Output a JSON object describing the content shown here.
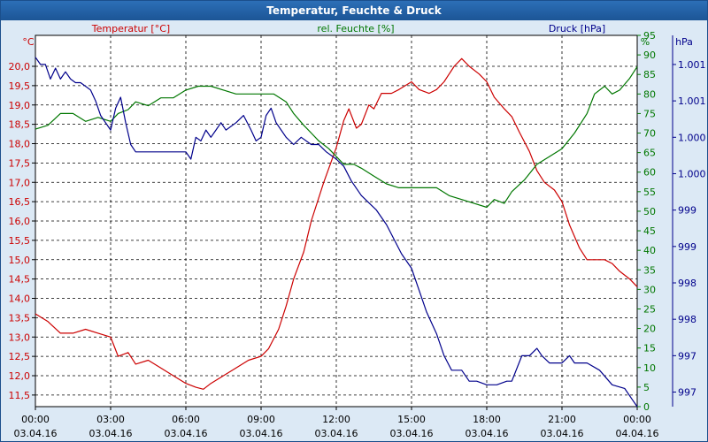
{
  "window": {
    "title": "Temperatur, Feuchte & Druck"
  },
  "colors": {
    "temperature": "#cc0000",
    "humidity": "#007700",
    "pressure": "#00008b",
    "axis_text": "#000000"
  },
  "chart_data": {
    "type": "line",
    "title": "Temperatur, Feuchte & Druck",
    "x_ticks": [
      {
        "time": "00:00",
        "date": "03.04.16"
      },
      {
        "time": "03:00",
        "date": "03.04.16"
      },
      {
        "time": "06:00",
        "date": "03.04.16"
      },
      {
        "time": "09:00",
        "date": "03.04.16"
      },
      {
        "time": "12:00",
        "date": "03.04.16"
      },
      {
        "time": "15:00",
        "date": "03.04.16"
      },
      {
        "time": "18:00",
        "date": "03.04.16"
      },
      {
        "time": "21:00",
        "date": "03.04.16"
      },
      {
        "time": "00:00",
        "date": "04.04.16"
      }
    ],
    "x_range_hours": [
      0,
      24
    ],
    "axes": {
      "temperature": {
        "label": "Temperatur [°C]",
        "unit": "°C",
        "range": [
          11.2,
          20.8
        ],
        "ticks": [
          "20,0",
          "19,5",
          "19,0",
          "18,5",
          "18,0",
          "17,5",
          "17,0",
          "16,5",
          "16,0",
          "15,5",
          "15,0",
          "14,5",
          "14,0",
          "13,5",
          "13,0",
          "12,5",
          "12,0",
          "11,5"
        ],
        "tick_values": [
          20.0,
          19.5,
          19.0,
          18.5,
          18.0,
          17.5,
          17.0,
          16.5,
          16.0,
          15.5,
          15.0,
          14.5,
          14.0,
          13.5,
          13.0,
          12.5,
          12.0,
          11.5
        ]
      },
      "humidity": {
        "label": "rel. Feuchte [%]",
        "unit": "%",
        "range": [
          0,
          95
        ],
        "ticks": [
          "95",
          "90",
          "85",
          "80",
          "75",
          "70",
          "65",
          "60",
          "55",
          "50",
          "45",
          "40",
          "35",
          "30",
          "25",
          "20",
          "15",
          "10",
          "5",
          "0"
        ],
        "tick_values": [
          95,
          90,
          85,
          80,
          75,
          70,
          65,
          60,
          55,
          50,
          45,
          40,
          35,
          30,
          25,
          20,
          15,
          10,
          5,
          0
        ]
      },
      "pressure": {
        "label": "Druck [hPa]",
        "unit": "hPa",
        "range": [
          996.5,
          1001.6
        ],
        "ticks": [
          "1.001",
          "1.001",
          "1.000",
          "1.000",
          "999",
          "999",
          "998",
          "998",
          "997",
          "997"
        ],
        "tick_values": [
          1001.2,
          1000.7,
          1000.2,
          999.7,
          999.2,
          998.7,
          998.2,
          997.7,
          997.2,
          996.7
        ]
      }
    },
    "series": [
      {
        "name": "Temperatur",
        "axis": "temperature",
        "points": [
          [
            0,
            13.6
          ],
          [
            0.5,
            13.4
          ],
          [
            1,
            13.1
          ],
          [
            1.5,
            13.1
          ],
          [
            2,
            13.2
          ],
          [
            2.5,
            13.1
          ],
          [
            3,
            13.0
          ],
          [
            3.3,
            12.5
          ],
          [
            3.7,
            12.6
          ],
          [
            4,
            12.3
          ],
          [
            4.5,
            12.4
          ],
          [
            5,
            12.2
          ],
          [
            5.5,
            12.0
          ],
          [
            6,
            11.8
          ],
          [
            6.4,
            11.7
          ],
          [
            6.7,
            11.65
          ],
          [
            7,
            11.8
          ],
          [
            7.5,
            12.0
          ],
          [
            8,
            12.2
          ],
          [
            8.5,
            12.4
          ],
          [
            9,
            12.5
          ],
          [
            9.3,
            12.7
          ],
          [
            9.7,
            13.2
          ],
          [
            10,
            13.8
          ],
          [
            10.3,
            14.5
          ],
          [
            10.7,
            15.2
          ],
          [
            11,
            16.0
          ],
          [
            11.5,
            17.0
          ],
          [
            12,
            17.9
          ],
          [
            12.3,
            18.6
          ],
          [
            12.5,
            18.9
          ],
          [
            12.8,
            18.4
          ],
          [
            13,
            18.5
          ],
          [
            13.3,
            19.0
          ],
          [
            13.5,
            18.9
          ],
          [
            13.8,
            19.3
          ],
          [
            14.2,
            19.3
          ],
          [
            14.5,
            19.4
          ],
          [
            15,
            19.6
          ],
          [
            15.3,
            19.4
          ],
          [
            15.7,
            19.3
          ],
          [
            16,
            19.4
          ],
          [
            16.3,
            19.6
          ],
          [
            16.7,
            20.0
          ],
          [
            17,
            20.2
          ],
          [
            17.3,
            20.0
          ],
          [
            17.7,
            19.8
          ],
          [
            18,
            19.6
          ],
          [
            18.3,
            19.2
          ],
          [
            18.7,
            18.9
          ],
          [
            19,
            18.7
          ],
          [
            19.3,
            18.3
          ],
          [
            19.7,
            17.8
          ],
          [
            20,
            17.3
          ],
          [
            20.3,
            17.0
          ],
          [
            20.7,
            16.8
          ],
          [
            21,
            16.5
          ],
          [
            21.3,
            15.9
          ],
          [
            21.7,
            15.3
          ],
          [
            22,
            15.0
          ],
          [
            22.3,
            15.0
          ],
          [
            22.7,
            15.0
          ],
          [
            23,
            14.9
          ],
          [
            23.3,
            14.7
          ],
          [
            23.7,
            14.5
          ],
          [
            24,
            14.3
          ]
        ]
      },
      {
        "name": "rel. Feuchte",
        "axis": "humidity",
        "points": [
          [
            0,
            71
          ],
          [
            0.5,
            72
          ],
          [
            1,
            75
          ],
          [
            1.5,
            75
          ],
          [
            2,
            73
          ],
          [
            2.5,
            74
          ],
          [
            3,
            73
          ],
          [
            3.3,
            75
          ],
          [
            3.7,
            76
          ],
          [
            4,
            78
          ],
          [
            4.5,
            77
          ],
          [
            5,
            79
          ],
          [
            5.5,
            79
          ],
          [
            6,
            81
          ],
          [
            6.5,
            82
          ],
          [
            7,
            82
          ],
          [
            7.5,
            81
          ],
          [
            8,
            80
          ],
          [
            8.5,
            80
          ],
          [
            9,
            80
          ],
          [
            9.5,
            80
          ],
          [
            10,
            78
          ],
          [
            10.3,
            75
          ],
          [
            10.7,
            72
          ],
          [
            11,
            70
          ],
          [
            11.3,
            68
          ],
          [
            11.7,
            66
          ],
          [
            12,
            64
          ],
          [
            12.3,
            62
          ],
          [
            12.7,
            62
          ],
          [
            13,
            61
          ],
          [
            13.5,
            59
          ],
          [
            14,
            57
          ],
          [
            14.5,
            56
          ],
          [
            15,
            56
          ],
          [
            15.5,
            56
          ],
          [
            16,
            56
          ],
          [
            16.5,
            54
          ],
          [
            17,
            53
          ],
          [
            17.5,
            52
          ],
          [
            18,
            51
          ],
          [
            18.3,
            53
          ],
          [
            18.7,
            52
          ],
          [
            19,
            55
          ],
          [
            19.5,
            58
          ],
          [
            20,
            62
          ],
          [
            20.5,
            64
          ],
          [
            21,
            66
          ],
          [
            21.5,
            70
          ],
          [
            22,
            75
          ],
          [
            22.3,
            80
          ],
          [
            22.7,
            82
          ],
          [
            23,
            80
          ],
          [
            23.3,
            81
          ],
          [
            23.7,
            84
          ],
          [
            24,
            87
          ]
        ]
      },
      {
        "name": "Druck",
        "axis": "pressure",
        "points": [
          [
            0,
            1001.3
          ],
          [
            0.2,
            1001.2
          ],
          [
            0.4,
            1001.2
          ],
          [
            0.6,
            1001.0
          ],
          [
            0.8,
            1001.15
          ],
          [
            1,
            1001.0
          ],
          [
            1.2,
            1001.1
          ],
          [
            1.4,
            1001.0
          ],
          [
            1.6,
            1000.95
          ],
          [
            1.8,
            1000.95
          ],
          [
            2,
            1000.9
          ],
          [
            2.2,
            1000.85
          ],
          [
            2.4,
            1000.7
          ],
          [
            2.6,
            1000.5
          ],
          [
            2.8,
            1000.4
          ],
          [
            3,
            1000.3
          ],
          [
            3.2,
            1000.6
          ],
          [
            3.4,
            1000.75
          ],
          [
            3.6,
            1000.4
          ],
          [
            3.8,
            1000.1
          ],
          [
            4,
            1000.0
          ],
          [
            4.4,
            1000.0
          ],
          [
            4.8,
            1000.0
          ],
          [
            5.2,
            1000.0
          ],
          [
            5.6,
            1000.0
          ],
          [
            6,
            1000.0
          ],
          [
            6.2,
            999.9
          ],
          [
            6.4,
            1000.2
          ],
          [
            6.6,
            1000.15
          ],
          [
            6.8,
            1000.3
          ],
          [
            7,
            1000.2
          ],
          [
            7.2,
            1000.3
          ],
          [
            7.4,
            1000.4
          ],
          [
            7.6,
            1000.3
          ],
          [
            8,
            1000.4
          ],
          [
            8.3,
            1000.5
          ],
          [
            8.6,
            1000.3
          ],
          [
            8.8,
            1000.15
          ],
          [
            9,
            1000.2
          ],
          [
            9.2,
            1000.5
          ],
          [
            9.4,
            1000.6
          ],
          [
            9.6,
            1000.4
          ],
          [
            9.8,
            1000.3
          ],
          [
            10,
            1000.2
          ],
          [
            10.3,
            1000.1
          ],
          [
            10.6,
            1000.2
          ],
          [
            11,
            1000.1
          ],
          [
            11.3,
            1000.1
          ],
          [
            11.6,
            1000.0
          ],
          [
            12,
            999.9
          ],
          [
            12.3,
            999.8
          ],
          [
            12.6,
            999.6
          ],
          [
            13,
            999.4
          ],
          [
            13.3,
            999.3
          ],
          [
            13.6,
            999.2
          ],
          [
            14,
            999.0
          ],
          [
            14.3,
            998.8
          ],
          [
            14.6,
            998.6
          ],
          [
            15,
            998.4
          ],
          [
            15.3,
            998.1
          ],
          [
            15.6,
            997.8
          ],
          [
            16,
            997.5
          ],
          [
            16.3,
            997.2
          ],
          [
            16.6,
            997.0
          ],
          [
            17,
            997.0
          ],
          [
            17.3,
            996.85
          ],
          [
            17.6,
            996.85
          ],
          [
            18,
            996.8
          ],
          [
            18.4,
            996.8
          ],
          [
            18.8,
            996.85
          ],
          [
            19,
            996.85
          ],
          [
            19.4,
            997.2
          ],
          [
            19.7,
            997.2
          ],
          [
            20,
            997.3
          ],
          [
            20.2,
            997.2
          ],
          [
            20.5,
            997.1
          ],
          [
            21,
            997.1
          ],
          [
            21.3,
            997.2
          ],
          [
            21.5,
            997.1
          ],
          [
            22,
            997.1
          ],
          [
            22.5,
            997.0
          ],
          [
            23,
            996.8
          ],
          [
            23.5,
            996.75
          ],
          [
            23.8,
            996.6
          ],
          [
            24,
            996.5
          ]
        ]
      }
    ],
    "grid": true,
    "legend": "top"
  }
}
